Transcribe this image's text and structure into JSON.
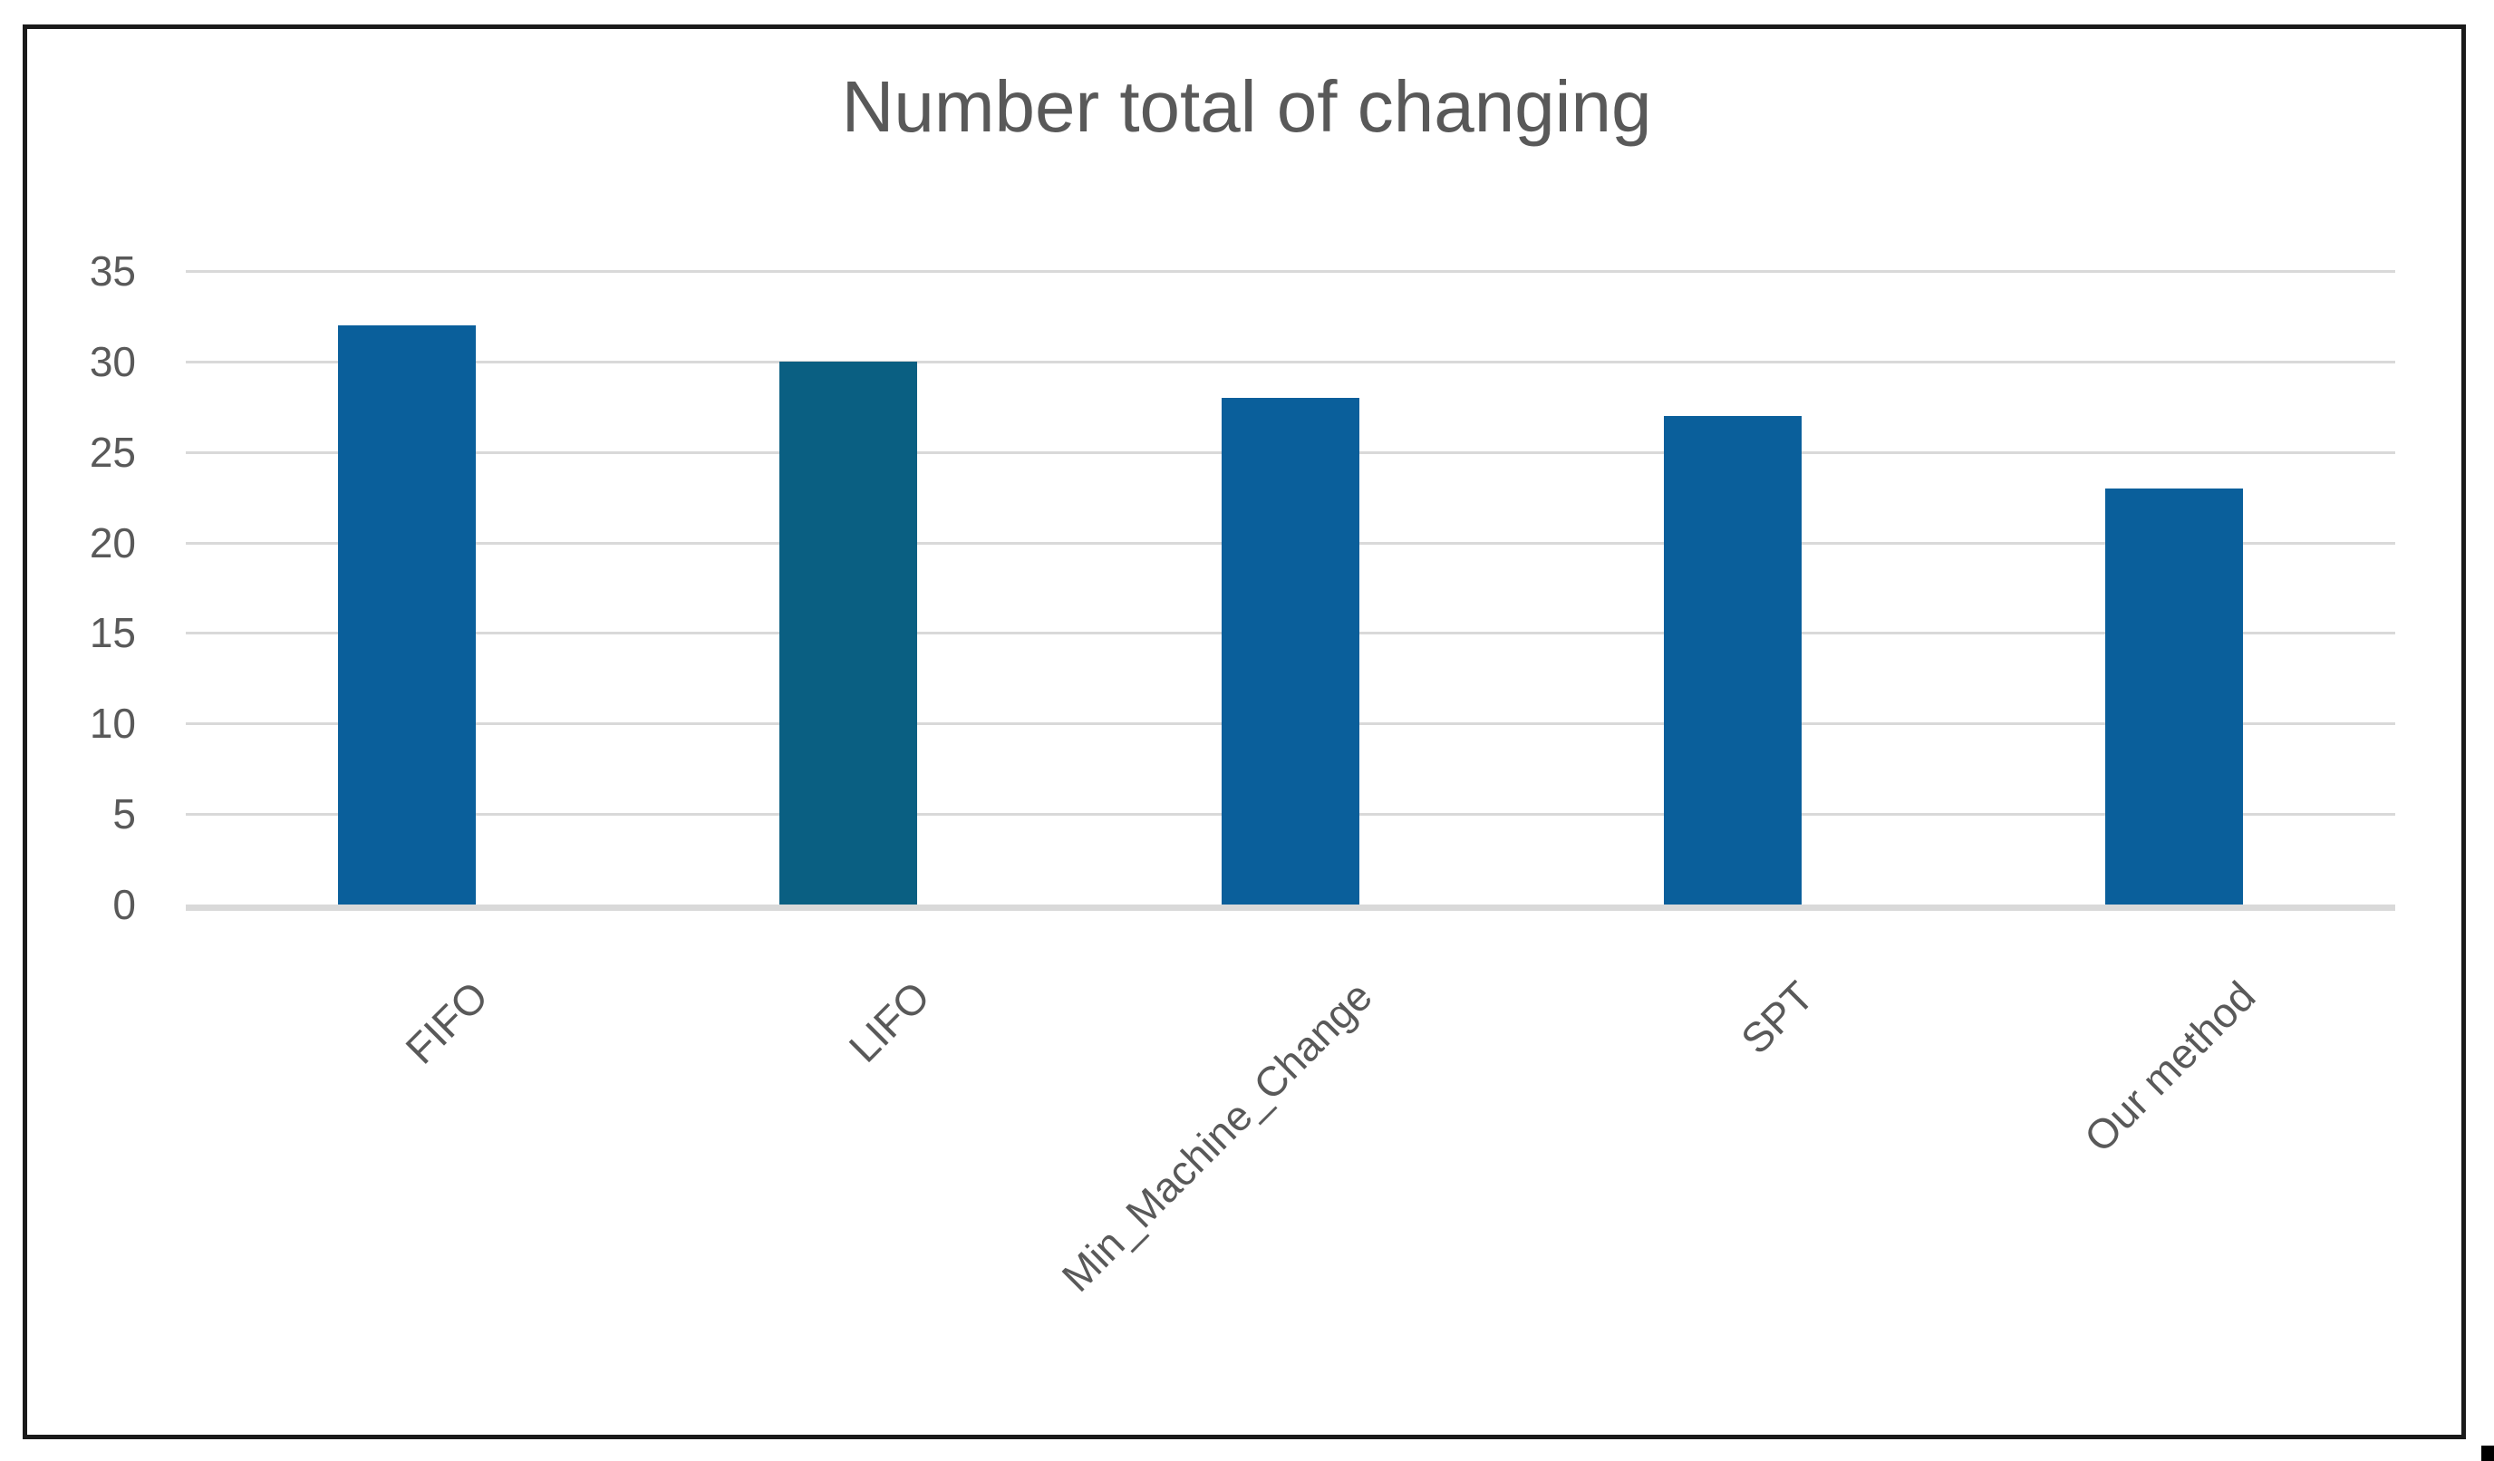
{
  "chart_data": {
    "type": "bar",
    "title": "Number total of changing",
    "categories": [
      "FIFO",
      "LIFO",
      "Min_Machine_Change",
      "SPT",
      "Our method"
    ],
    "values": [
      32,
      30,
      28,
      27,
      23
    ],
    "bar_colors": [
      "#0a5f9b",
      "#0a5f82",
      "#0a5f9b",
      "#0a5f9b",
      "#0a5f9b"
    ],
    "xlabel": "",
    "ylabel": "",
    "ylim": [
      0,
      35
    ],
    "y_ticks": [
      0,
      5,
      10,
      15,
      20,
      25,
      30,
      35
    ],
    "grid": true,
    "legend_position": "none",
    "x_label_rotation_deg": 45
  },
  "styles": {
    "title_color": "#595959",
    "tick_label_color": "#595959",
    "gridline_color": "#d9d9d9",
    "axis_line_color": "#d9d9d9",
    "frame_border_color": "#1a1a1a",
    "background_color": "#ffffff"
  }
}
